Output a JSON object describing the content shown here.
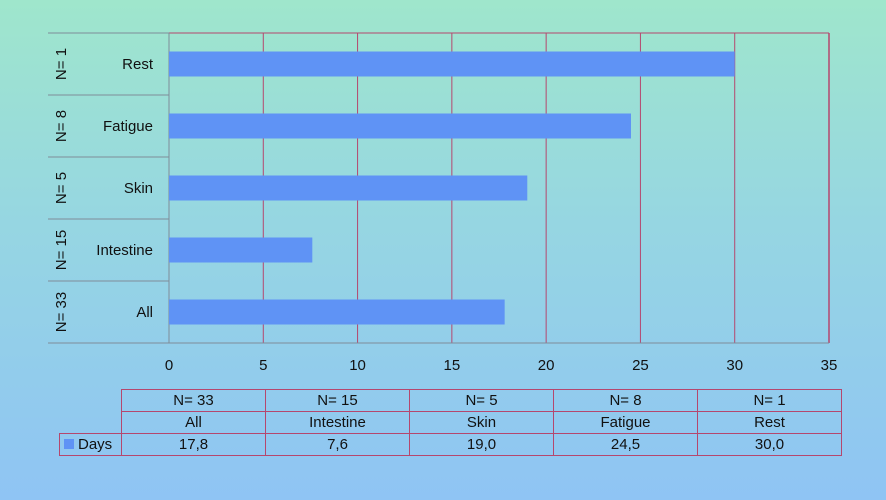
{
  "chart_data": {
    "type": "bar",
    "orientation": "horizontal",
    "categories": [
      "All",
      "Intestine",
      "Skin",
      "Fatigue",
      "Rest"
    ],
    "groups": [
      "N= 33",
      "N= 15",
      "N= 5",
      "N= 8",
      "N= 1"
    ],
    "series": [
      {
        "name": "Days",
        "values": [
          17.8,
          7.6,
          19.0,
          24.5,
          30.0
        ],
        "color": "#5f93f5"
      }
    ],
    "value_labels": [
      "17,8",
      "7,6",
      "19,0",
      "24,5",
      "30,0"
    ],
    "xlim": [
      0,
      35
    ],
    "xticks": [
      0,
      5,
      10,
      15,
      20,
      25,
      30,
      35
    ],
    "grid": "vertical",
    "grid_color": "#b5476e",
    "legend": "data-table"
  }
}
